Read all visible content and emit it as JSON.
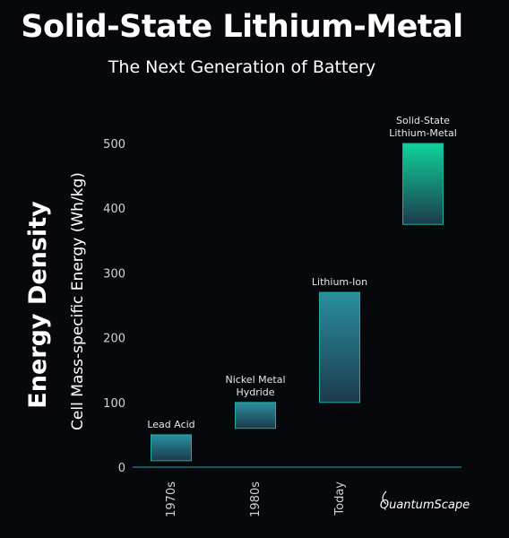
{
  "title": "Solid-State Lithium-Metal",
  "subtitle": "The Next Generation of Battery",
  "logo_text": "QuantumScape",
  "colors": {
    "background": "#06080c",
    "bar_top": "#2a8fa0",
    "bar_bottom": "#1c3a4c",
    "bar_top_highlight": "#0fd39a",
    "bar_border": "#1fae9a"
  },
  "chart_data": {
    "type": "bar",
    "subtype": "floating-range",
    "title": "Solid-State Lithium-Metal",
    "subtitle": "The Next Generation of Battery",
    "ylabel_main": "Energy Density",
    "ylabel": "Cell Mass-specific Energy (Wh/kg)",
    "ylim": [
      0,
      500
    ],
    "yticks": [
      "0",
      "100",
      "200",
      "300",
      "400",
      "500"
    ],
    "grid": false,
    "categories": [
      "1970s",
      "1980s",
      "Today",
      ""
    ],
    "bars": [
      {
        "label": "Lead Acid",
        "low": 10,
        "high": 50
      },
      {
        "label": "Nickel Metal Hydride",
        "low": 60,
        "high": 100
      },
      {
        "label": "Lithium-Ion",
        "low": 100,
        "high": 270
      },
      {
        "label": "Solid-State Lithium-Metal",
        "low": 375,
        "high": 500
      }
    ]
  }
}
